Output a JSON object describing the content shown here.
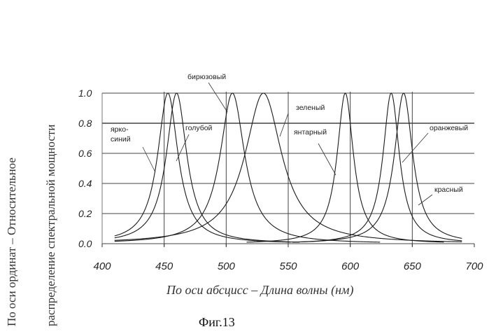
{
  "chart_data": {
    "type": "line",
    "title": "",
    "xlabel": "По оси абсцисс – Длина волны (нм)",
    "ylabel_line1": "По оси ординат – Относительное",
    "ylabel_line2": "распределение спектральной мощности",
    "caption": "Фиг.13",
    "xlim": [
      400,
      700
    ],
    "ylim": [
      0,
      1.0
    ],
    "x_ticks": [
      "400",
      "450",
      "500",
      "550",
      "600",
      "650",
      "700"
    ],
    "y_ticks": [
      "0.0",
      "0.2",
      "0.4",
      "0.6",
      "0.8",
      "1.0"
    ],
    "grid": true,
    "series": [
      {
        "name": "ярко-синий",
        "peak": 453,
        "hwhm": 10,
        "label_lines": [
          "ярко-",
          "синий"
        ]
      },
      {
        "name": "голубой",
        "peak": 460,
        "hwhm": 10,
        "label_lines": [
          "голубой"
        ]
      },
      {
        "name": "бирюзовый",
        "peak": 505,
        "hwhm": 12,
        "label_lines": [
          "бирюзовый"
        ]
      },
      {
        "name": "зеленый",
        "peak": 530,
        "hwhm": 18,
        "label_lines": [
          "зеленый"
        ]
      },
      {
        "name": "янтарный",
        "peak": 596,
        "hwhm": 8,
        "label_lines": [
          "янтарный"
        ]
      },
      {
        "name": "оранжевый",
        "peak": 633,
        "hwhm": 8,
        "label_lines": [
          "оранжевый"
        ]
      },
      {
        "name": "красный",
        "peak": 643,
        "hwhm": 9,
        "label_lines": [
          "красный"
        ]
      }
    ]
  }
}
